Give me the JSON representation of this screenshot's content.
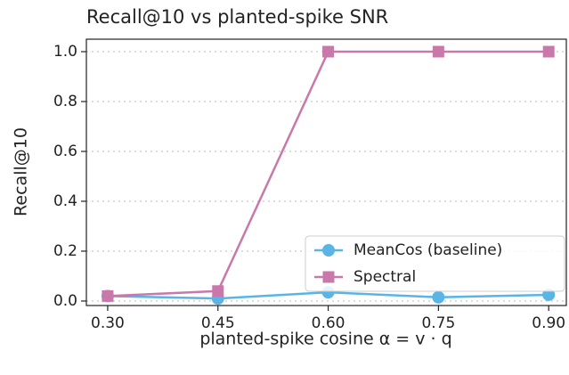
{
  "chart_data": {
    "type": "line",
    "title": "Recall@10 vs planted-spike SNR",
    "xlabel": "planted-spike cosine α = v · q",
    "ylabel": "Recall@10",
    "x": [
      0.3,
      0.45,
      0.6,
      0.75,
      0.9
    ],
    "series": [
      {
        "name": "MeanCos (baseline)",
        "color": "#5ab4e5",
        "marker": "circle",
        "values": [
          0.02,
          0.01,
          0.035,
          0.015,
          0.025
        ]
      },
      {
        "name": "Spectral",
        "color": "#c978aa",
        "marker": "square",
        "values": [
          0.02,
          0.04,
          1.0,
          1.0,
          1.0
        ]
      }
    ],
    "xlim": [
      0.271,
      0.924
    ],
    "xticks": [
      {
        "value": 0.3,
        "label": "0.30"
      },
      {
        "value": 0.45,
        "label": "0.45"
      },
      {
        "value": 0.6,
        "label": "0.60"
      },
      {
        "value": 0.75,
        "label": "0.75"
      },
      {
        "value": 0.9,
        "label": "0.90"
      }
    ],
    "ylim": [
      -0.018,
      1.05
    ],
    "yticks": [
      {
        "value": 0.0,
        "label": "0.0"
      },
      {
        "value": 0.2,
        "label": "0.2"
      },
      {
        "value": 0.4,
        "label": "0.4"
      },
      {
        "value": 0.6,
        "label": "0.6"
      },
      {
        "value": 0.8,
        "label": "0.8"
      },
      {
        "value": 1.0,
        "label": "1.0"
      }
    ],
    "grid": true,
    "legend": "lower right"
  }
}
